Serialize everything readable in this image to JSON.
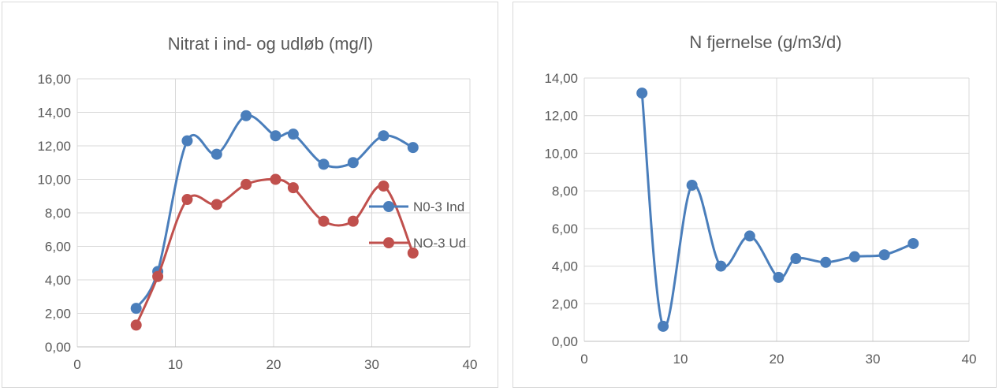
{
  "chart_data": [
    {
      "type": "line",
      "title": "Nitrat i ind- og udløb (mg/l)",
      "xlabel": "",
      "ylabel": "",
      "xlim": [
        0,
        40
      ],
      "ylim": [
        0,
        16
      ],
      "x_ticks": [
        "0",
        "10",
        "20",
        "30",
        "40"
      ],
      "y_ticks": [
        "0,00",
        "2,00",
        "4,00",
        "6,00",
        "8,00",
        "10,00",
        "12,00",
        "14,00",
        "16,00"
      ],
      "grid": true,
      "smooth": true,
      "legend_position": "right",
      "series": [
        {
          "name": "N0-3 Ind",
          "color": "#4a7ebb",
          "x": [
            6,
            8.2,
            11.2,
            14.2,
            17.2,
            20.2,
            22,
            25.1,
            28.1,
            31.2,
            34.2
          ],
          "y": [
            2.3,
            4.5,
            12.3,
            11.5,
            13.8,
            12.6,
            12.7,
            10.9,
            11.0,
            12.6,
            11.9
          ]
        },
        {
          "name": "NO-3 Ud",
          "color": "#c0504d",
          "x": [
            6,
            8.2,
            11.2,
            14.2,
            17.2,
            20.2,
            22,
            25.1,
            28.1,
            31.2,
            34.2
          ],
          "y": [
            1.3,
            4.2,
            8.8,
            8.5,
            9.7,
            10.0,
            9.5,
            7.5,
            7.5,
            9.6,
            5.6
          ]
        }
      ]
    },
    {
      "type": "line",
      "title": "N fjernelse (g/m3/d)",
      "xlabel": "",
      "ylabel": "",
      "xlim": [
        0,
        40
      ],
      "ylim": [
        0,
        14
      ],
      "x_ticks": [
        "0",
        "10",
        "20",
        "30",
        "40"
      ],
      "y_ticks": [
        "0,00",
        "2,00",
        "4,00",
        "6,00",
        "8,00",
        "10,00",
        "12,00",
        "14,00"
      ],
      "grid": true,
      "smooth": true,
      "series": [
        {
          "color": "#4a7ebb",
          "x": [
            6,
            8.2,
            11.2,
            14.2,
            17.2,
            20.2,
            22,
            25.1,
            28.1,
            31.2,
            34.2
          ],
          "y": [
            13.2,
            0.8,
            8.3,
            4.0,
            5.6,
            3.4,
            4.4,
            4.2,
            4.5,
            4.6,
            5.2
          ]
        }
      ]
    }
  ]
}
